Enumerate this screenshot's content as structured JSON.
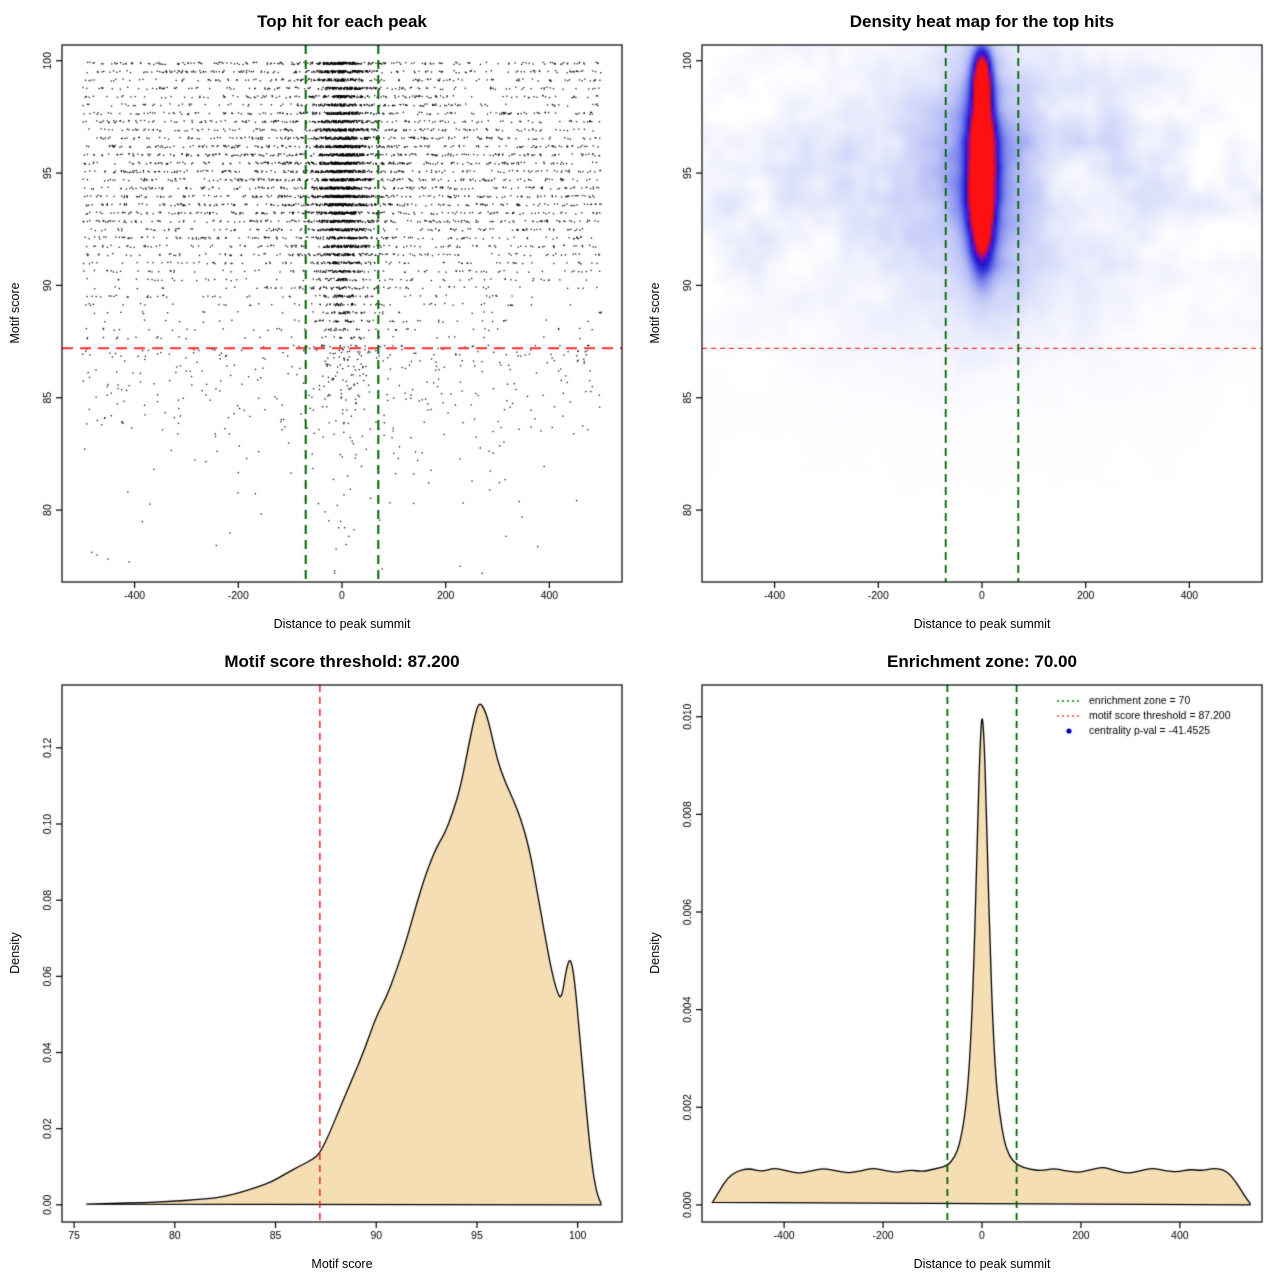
{
  "figure": {
    "background": "#ffffff"
  },
  "chart_data": [
    {
      "type": "scatter",
      "title": "Top hit for each peak",
      "xlabel": "Distance to peak summit",
      "ylabel": "Motif score",
      "xlim": [
        -540,
        540
      ],
      "ylim": [
        76.8,
        100.7
      ],
      "xticks": {
        "values": [
          -400,
          -200,
          0,
          200,
          400
        ],
        "labels": [
          "-400",
          "-200",
          "0",
          "200",
          "400"
        ]
      },
      "yticks": {
        "values": [
          80,
          85,
          90,
          95,
          100
        ],
        "labels": [
          "80",
          "85",
          "90",
          "95",
          "100"
        ]
      },
      "hline": {
        "y": 87.2,
        "color": "#ff2a2a",
        "width": 2,
        "dash": [
          11,
          7
        ]
      },
      "vlines": {
        "x": [
          -70,
          70
        ],
        "color": "#006400",
        "width": 2,
        "dash": [
          9,
          6
        ]
      },
      "points_spec": {
        "seed": 42,
        "n": 8000,
        "color": "#000000",
        "central_frac": 0.4,
        "central_sigma": 26,
        "mid_frac": 0.12,
        "mid_sigma": 110,
        "x_range": [
          -500,
          500
        ],
        "tail_frac": 0.065,
        "tail_scale": 2.6,
        "tail_min": 77.1,
        "level_start": 87.3,
        "level_step": 0.37,
        "level_count": 35,
        "level_floor": 0.07,
        "level_peaks": [
          [
            95,
            3.0,
            1.0
          ],
          [
            99.75,
            0.5,
            0.55
          ]
        ],
        "jitter": 0.05,
        "threshold": 87.2
      }
    },
    {
      "type": "heatmap",
      "title": "Density heat map for the top hits",
      "xlabel": "Distance to peak summit",
      "ylabel": "Motif score",
      "xlim": [
        -540,
        540
      ],
      "ylim": [
        76.8,
        100.7
      ],
      "xticks": {
        "values": [
          -400,
          -200,
          0,
          200,
          400
        ],
        "labels": [
          "-400",
          "-200",
          "0",
          "200",
          "400"
        ]
      },
      "yticks": {
        "values": [
          80,
          85,
          90,
          95,
          100
        ],
        "labels": [
          "80",
          "85",
          "90",
          "95",
          "100"
        ]
      },
      "hline": {
        "y": 87.2,
        "color": "#ff3333",
        "width": 1.2,
        "dash": [
          5,
          4
        ]
      },
      "vlines": {
        "x": [
          -70,
          70
        ],
        "color": "#006400",
        "width": 1.8,
        "dash": [
          8,
          5
        ]
      },
      "field": {
        "seed": 7,
        "nx": 190,
        "ny": 180,
        "noise_amp": 0.12,
        "envelope": [
          94.6,
          5.2
        ],
        "components": [
          [
            0,
            94.8,
            300,
            5.0,
            0.16
          ],
          [
            0,
            94.8,
            70,
            3.8,
            0.3
          ],
          [
            0,
            95.2,
            19,
            2.3,
            1.0
          ],
          [
            0,
            99.6,
            13,
            0.8,
            0.62
          ],
          [
            0,
            97.8,
            13,
            1.3,
            0.4
          ],
          [
            0,
            92.3,
            15,
            1.5,
            0.38
          ]
        ],
        "colormap": [
          [
            0,
            "#ffffff"
          ],
          [
            0.05,
            "#f7f8fe"
          ],
          [
            0.15,
            "#dfe3fb"
          ],
          [
            0.3,
            "#b7bff6"
          ],
          [
            0.45,
            "#7f89ee"
          ],
          [
            0.6,
            "#3d3fe0"
          ],
          [
            0.72,
            "#1e14cf"
          ],
          [
            0.82,
            "#7a0bbf"
          ],
          [
            0.9,
            "#dc0f25"
          ],
          [
            1,
            "#ff1010"
          ]
        ]
      }
    },
    {
      "type": "density",
      "title": "Motif score threshold: 87.200",
      "xlabel": "Motif score",
      "ylabel": "Density",
      "xlim": [
        74.4,
        102.2
      ],
      "ylim": [
        -0.0045,
        0.1365
      ],
      "xticks": {
        "values": [
          75,
          80,
          85,
          90,
          95,
          100
        ],
        "labels": [
          "75",
          "80",
          "85",
          "90",
          "95",
          "100"
        ]
      },
      "yticks": {
        "values": [
          0,
          0.02,
          0.04,
          0.06,
          0.08,
          0.1,
          0.12
        ],
        "labels": [
          "0.00",
          "0.02",
          "0.04",
          "0.06",
          "0.08",
          "0.10",
          "0.12"
        ]
      },
      "fill": "#f5deb3",
      "stroke": "#000000",
      "vlines": {
        "x": [
          87.2
        ],
        "color": "#e63329",
        "width": 1.6,
        "dash": [
          7,
          5
        ]
      },
      "points": [
        [
          75.6,
          0.0002
        ],
        [
          77,
          0.0004
        ],
        [
          78.5,
          0.0006
        ],
        [
          80,
          0.001
        ],
        [
          81,
          0.0013
        ],
        [
          82,
          0.0018
        ],
        [
          83,
          0.0028
        ],
        [
          84,
          0.0045
        ],
        [
          84.8,
          0.006
        ],
        [
          85.5,
          0.0082
        ],
        [
          86.2,
          0.0102
        ],
        [
          86.8,
          0.0118
        ],
        [
          87.2,
          0.0135
        ],
        [
          87.7,
          0.019
        ],
        [
          88.2,
          0.0255
        ],
        [
          88.8,
          0.033
        ],
        [
          89.4,
          0.0405
        ],
        [
          90,
          0.0495
        ],
        [
          90.5,
          0.0545
        ],
        [
          91,
          0.0615
        ],
        [
          91.5,
          0.0695
        ],
        [
          92,
          0.079
        ],
        [
          92.5,
          0.0875
        ],
        [
          93,
          0.094
        ],
        [
          93.4,
          0.0975
        ],
        [
          93.8,
          0.103
        ],
        [
          94.2,
          0.11
        ],
        [
          94.6,
          0.121
        ],
        [
          94.9,
          0.1285
        ],
        [
          95.1,
          0.132
        ],
        [
          95.35,
          0.1305
        ],
        [
          95.6,
          0.1265
        ],
        [
          96,
          0.117
        ],
        [
          96.4,
          0.111
        ],
        [
          96.8,
          0.1065
        ],
        [
          97.2,
          0.101
        ],
        [
          97.6,
          0.0935
        ],
        [
          98,
          0.082
        ],
        [
          98.4,
          0.07
        ],
        [
          98.7,
          0.0615
        ],
        [
          99,
          0.0555
        ],
        [
          99.2,
          0.054
        ],
        [
          99.45,
          0.0625
        ],
        [
          99.65,
          0.065
        ],
        [
          99.85,
          0.059
        ],
        [
          100.1,
          0.0445
        ],
        [
          100.4,
          0.0265
        ],
        [
          100.7,
          0.0105
        ],
        [
          100.95,
          0.003
        ],
        [
          101.15,
          0.0005
        ]
      ]
    },
    {
      "type": "density",
      "title": "Enrichment zone: 70.00",
      "xlabel": "Distance to peak summit",
      "ylabel": "Density",
      "xlim": [
        -566,
        566
      ],
      "ylim": [
        -0.00035,
        0.01065
      ],
      "xticks": {
        "values": [
          -400,
          -200,
          0,
          200,
          400
        ],
        "labels": [
          "-400",
          "-200",
          "0",
          "200",
          "400"
        ]
      },
      "yticks": {
        "values": [
          0,
          0.002,
          0.004,
          0.006,
          0.008,
          0.01
        ],
        "labels": [
          "0.000",
          "0.002",
          "0.004",
          "0.006",
          "0.008",
          "0.010"
        ]
      },
      "fill": "#f5deb3",
      "stroke": "#000000",
      "vlines": {
        "x": [
          -70,
          70
        ],
        "color": "#006400",
        "width": 1.8,
        "dash": [
          7,
          5
        ]
      },
      "legend": [
        {
          "type": "dotted",
          "color": "#008000",
          "label": "enrichment zone = 70"
        },
        {
          "type": "dotted",
          "color": "#ff4040",
          "label": "motif score threshold = 87.200"
        },
        {
          "type": "point",
          "color": "#0000cc",
          "label": "centrality p-val = -41.4525"
        }
      ],
      "points": [
        [
          -545,
          5e-05
        ],
        [
          -530,
          0.0003
        ],
        [
          -515,
          0.00055
        ],
        [
          -495,
          0.0007
        ],
        [
          -470,
          0.00075
        ],
        [
          -445,
          0.00068
        ],
        [
          -420,
          0.00076
        ],
        [
          -395,
          0.0007
        ],
        [
          -370,
          0.00064
        ],
        [
          -345,
          0.0007
        ],
        [
          -320,
          0.00075
        ],
        [
          -295,
          0.0007
        ],
        [
          -270,
          0.00065
        ],
        [
          -245,
          0.0007
        ],
        [
          -220,
          0.00076
        ],
        [
          -195,
          0.0007
        ],
        [
          -170,
          0.00066
        ],
        [
          -145,
          0.00072
        ],
        [
          -120,
          0.00068
        ],
        [
          -95,
          0.00074
        ],
        [
          -70,
          0.0008
        ],
        [
          -55,
          0.00098
        ],
        [
          -45,
          0.00125
        ],
        [
          -35,
          0.0018
        ],
        [
          -28,
          0.0025
        ],
        [
          -22,
          0.0035
        ],
        [
          -17,
          0.0048
        ],
        [
          -12,
          0.0065
        ],
        [
          -8,
          0.0081
        ],
        [
          -4,
          0.0094
        ],
        [
          0,
          0.0101
        ],
        [
          4,
          0.0096
        ],
        [
          8,
          0.0084
        ],
        [
          12,
          0.0068
        ],
        [
          17,
          0.0051
        ],
        [
          22,
          0.0037
        ],
        [
          28,
          0.0026
        ],
        [
          35,
          0.0019
        ],
        [
          45,
          0.0013
        ],
        [
          55,
          0.001
        ],
        [
          70,
          0.00082
        ],
        [
          95,
          0.00073
        ],
        [
          120,
          0.0007
        ],
        [
          145,
          0.00075
        ],
        [
          170,
          0.0007
        ],
        [
          195,
          0.00066
        ],
        [
          220,
          0.00072
        ],
        [
          245,
          0.00078
        ],
        [
          270,
          0.0007
        ],
        [
          295,
          0.00064
        ],
        [
          320,
          0.0007
        ],
        [
          345,
          0.00076
        ],
        [
          370,
          0.0007
        ],
        [
          395,
          0.00067
        ],
        [
          420,
          0.00073
        ],
        [
          445,
          0.0007
        ],
        [
          470,
          0.00076
        ],
        [
          495,
          0.0007
        ],
        [
          515,
          0.00045
        ],
        [
          530,
          0.0002
        ],
        [
          542,
          3e-05
        ]
      ]
    }
  ]
}
